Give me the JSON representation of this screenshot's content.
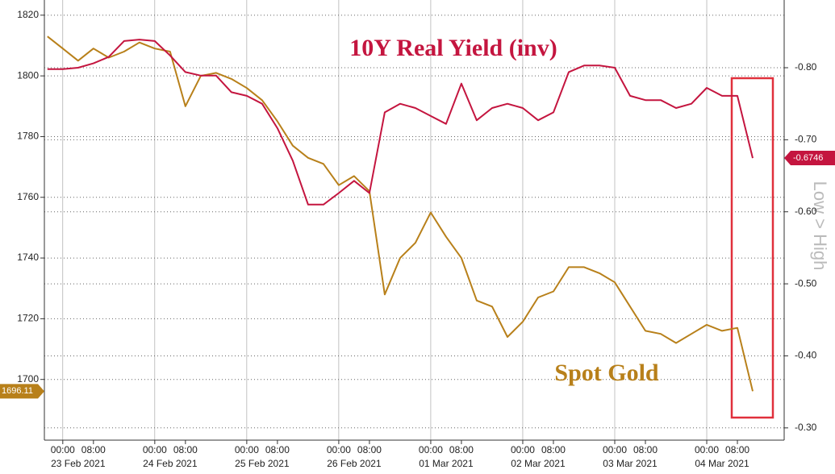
{
  "chart_data": {
    "type": "line",
    "series": [
      {
        "name": "Spot Gold",
        "color": "#b8801a",
        "axis": "y",
        "values": [
          1813,
          1809,
          1805,
          1809,
          1806,
          1808,
          1811,
          1809,
          1808,
          1790,
          1800,
          1801,
          1799,
          1796,
          1792,
          1785,
          1777,
          1773,
          1771,
          1764,
          1767,
          1762,
          1728,
          1740,
          1745,
          1755,
          1747,
          1740,
          1726,
          1724,
          1714,
          1719,
          1727,
          1729,
          1737,
          1737,
          1735,
          1732,
          1724,
          1716,
          1715,
          1712,
          1715,
          1718,
          1716,
          1717,
          1696.11
        ]
      },
      {
        "name": "10Y Real Yield (inv)",
        "color": "#c4153f",
        "axis": "y2",
        "values": [
          -0.798,
          -0.798,
          -0.8,
          -0.806,
          -0.815,
          -0.837,
          -0.839,
          -0.837,
          -0.817,
          -0.794,
          -0.789,
          -0.789,
          -0.766,
          -0.761,
          -0.75,
          -0.716,
          -0.671,
          -0.61,
          -0.61,
          -0.626,
          -0.643,
          -0.626,
          -0.738,
          -0.75,
          -0.744,
          -0.733,
          -0.722,
          -0.778,
          -0.727,
          -0.744,
          -0.75,
          -0.744,
          -0.727,
          -0.738,
          -0.794,
          -0.803,
          -0.803,
          -0.8,
          -0.761,
          -0.755,
          -0.755,
          -0.744,
          -0.75,
          -0.772,
          -0.761,
          -0.761,
          -0.6746
        ]
      }
    ],
    "xlim": [
      -0.2,
      48.05
    ],
    "xticks": [
      {
        "value": 1,
        "label": "00:00"
      },
      {
        "value": 3,
        "label": "08:00"
      },
      {
        "value": 7,
        "label": "00:00"
      },
      {
        "value": 9,
        "label": "08:00"
      },
      {
        "value": 13,
        "label": "00:00"
      },
      {
        "value": 15,
        "label": "08:00"
      },
      {
        "value": 19,
        "label": "00:00"
      },
      {
        "value": 21,
        "label": "08:00"
      },
      {
        "value": 25,
        "label": "00:00"
      },
      {
        "value": 27,
        "label": "08:00"
      },
      {
        "value": 31,
        "label": "00:00"
      },
      {
        "value": 33,
        "label": "08:00"
      },
      {
        "value": 37,
        "label": "00:00"
      },
      {
        "value": 39,
        "label": "08:00"
      },
      {
        "value": 43,
        "label": "00:00"
      },
      {
        "value": 45,
        "label": "08:00"
      }
    ],
    "xgroups": [
      {
        "value": 2,
        "label": "23 Feb 2021"
      },
      {
        "value": 8,
        "label": "24 Feb 2021"
      },
      {
        "value": 14,
        "label": "25 Feb 2021"
      },
      {
        "value": 20,
        "label": "26 Feb 2021"
      },
      {
        "value": 26,
        "label": "01 Mar 2021"
      },
      {
        "value": 32,
        "label": "02 Mar 2021"
      },
      {
        "value": 38,
        "label": "03 Mar 2021"
      },
      {
        "value": 44,
        "label": "04 Mar 2021"
      }
    ],
    "ylim": [
      1680,
      1825
    ],
    "yticks": [
      1700,
      1720,
      1740,
      1760,
      1780,
      1800,
      1820
    ],
    "y2lim": [
      -0.283,
      -0.894
    ],
    "y2ticks": [
      {
        "value": -0.3,
        "label": "-0.30"
      },
      {
        "value": -0.4,
        "label": "-0.40"
      },
      {
        "value": -0.5,
        "label": "-0.50"
      },
      {
        "value": -0.6,
        "label": "-0.60"
      },
      {
        "value": -0.7,
        "label": "-0.70"
      },
      {
        "value": -0.8,
        "label": "-0.80"
      }
    ],
    "y2label": "Low > High",
    "grid": true
  }
}
